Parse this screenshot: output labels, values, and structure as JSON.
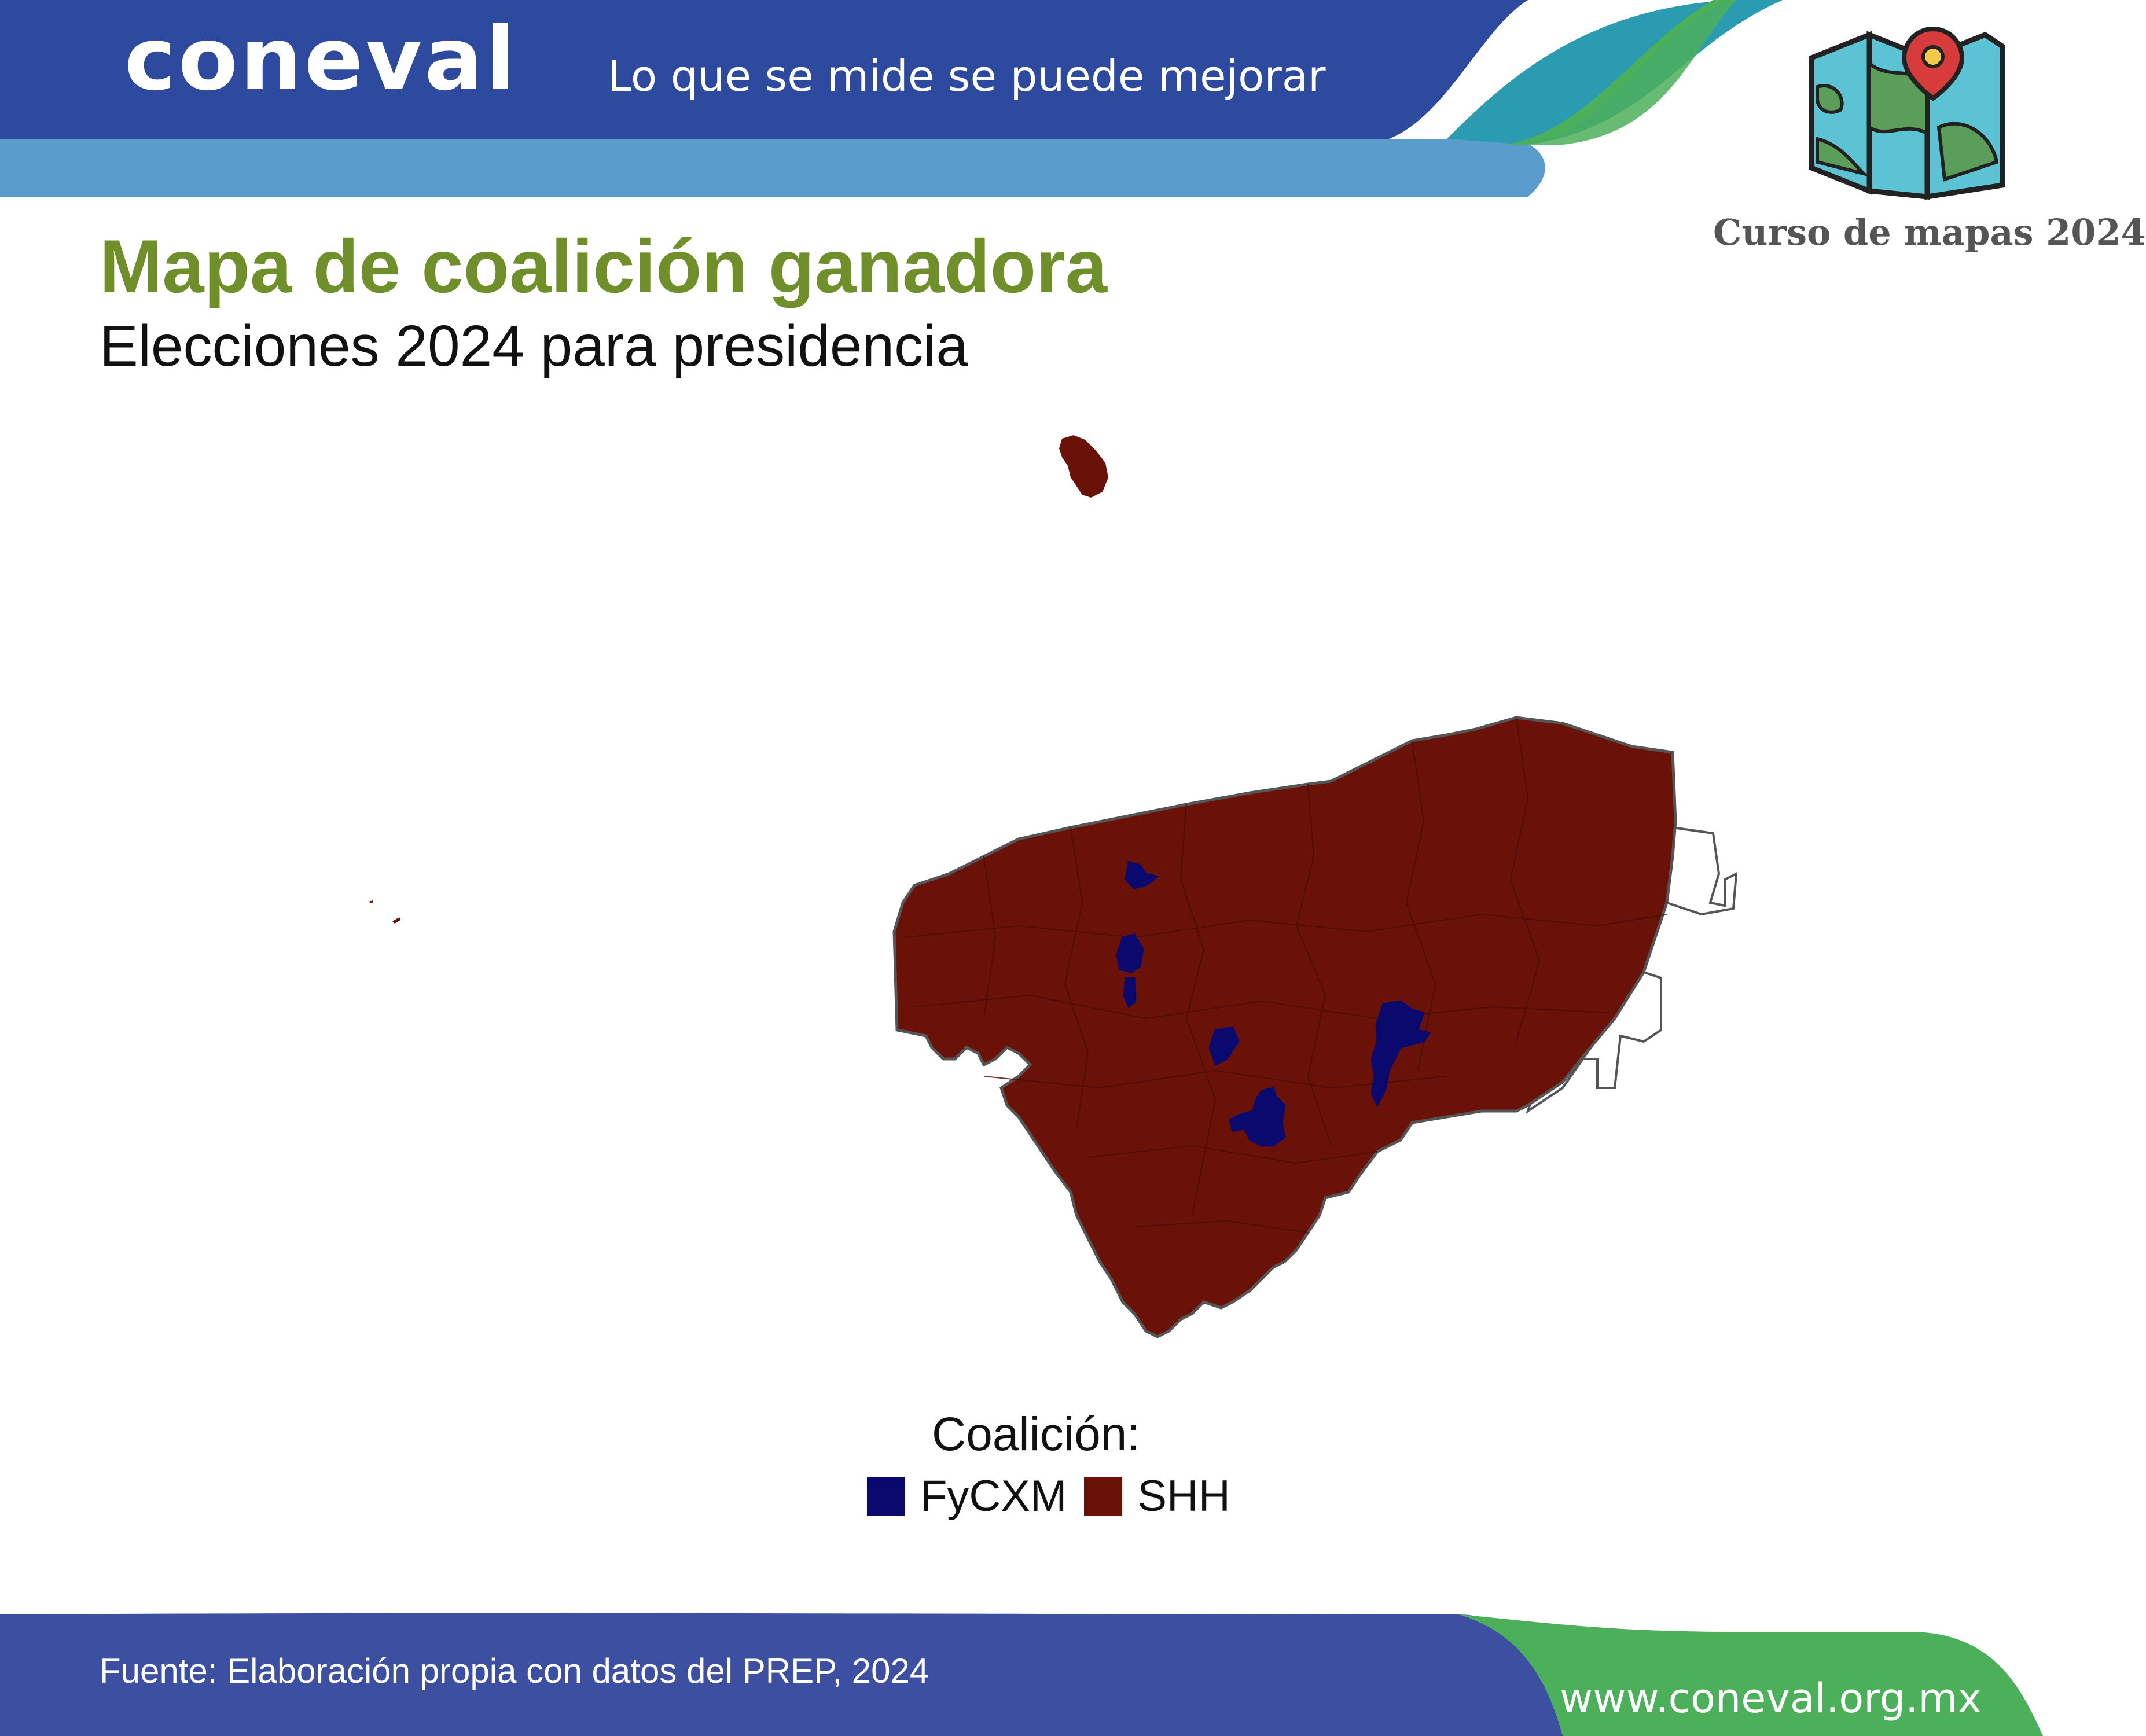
{
  "header": {
    "logo": "coneval",
    "slogan": "Lo que se mide se puede mejorar",
    "course_label": "Curso de mapas 2024",
    "course_icon": "folded-map-pin-icon"
  },
  "title": "Mapa de coalición ganadora",
  "subtitle": "Elecciones 2024 para presidencia",
  "legend": {
    "title": "Coalición:",
    "items": [
      {
        "label": "FyCXM",
        "color": "#0a0a6e"
      },
      {
        "label": "SHH",
        "color": "#6a1207"
      }
    ]
  },
  "footer": {
    "source": "Fuente: Elaboración propia con datos del PREP, 2024",
    "url": "www.coneval.org.mx"
  },
  "colors": {
    "title": "#6e8f2a",
    "header_blue": "#2e4a9e",
    "header_light_blue": "#5a9ccb",
    "accent_green": "#4caf5a",
    "teal": "#2a9bb0",
    "border_gray": "#555555"
  }
}
